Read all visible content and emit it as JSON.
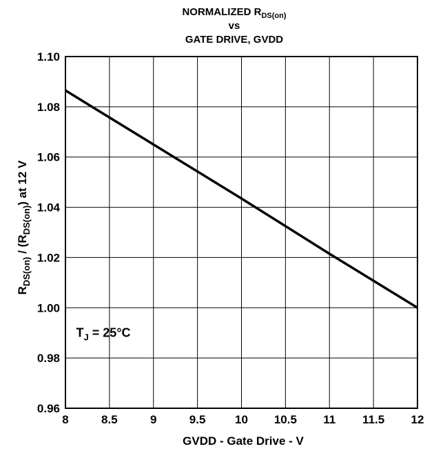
{
  "chart_data": {
    "type": "line",
    "title": {
      "line1_main": "NORMALIZED R",
      "line1_sub": "DS(on)",
      "line2": "vs",
      "line3": "GATE DRIVE, GVDD"
    },
    "xlabel": "GVDD - Gate Drive - V",
    "ylabel": {
      "p1": "R",
      "p1_sub": "DS(on)",
      "p2": " / (R",
      "p2_sub": "DS(on)",
      "p3": ") at 12 V"
    },
    "xlim": [
      8,
      12
    ],
    "ylim": [
      0.96,
      1.1
    ],
    "x_ticks": [
      "8",
      "8.5",
      "9",
      "9.5",
      "10",
      "10.5",
      "11",
      "11.5",
      "12"
    ],
    "y_ticks": [
      "0.96",
      "0.98",
      "1.00",
      "1.02",
      "1.04",
      "1.06",
      "1.08",
      "1.10"
    ],
    "grid": true,
    "series": [
      {
        "x": [
          8,
          9,
          10,
          11,
          12
        ],
        "y": [
          1.0865,
          1.065,
          1.0435,
          1.0215,
          1.0
        ],
        "color": "#000000"
      }
    ],
    "annotations": [
      {
        "main": "T",
        "sub": "J",
        "rest": " = 25°C",
        "x": 8.2,
        "y": 0.99
      }
    ]
  }
}
